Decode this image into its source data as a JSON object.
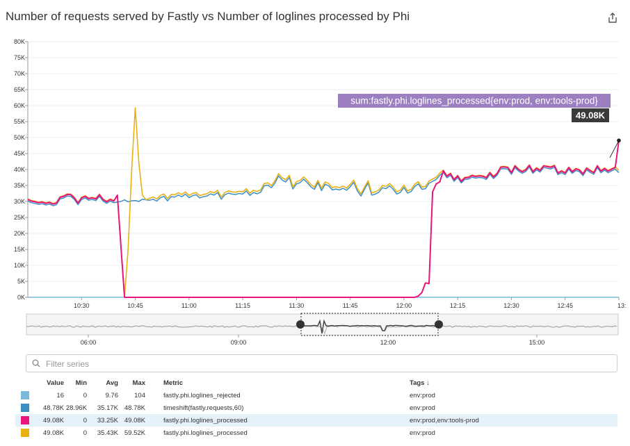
{
  "title": "Number of requests served by Fastly vs Number of loglines processed by Phi",
  "share_icon": "share-icon",
  "colors": {
    "rejected": "#7ab8dc",
    "requests": "#3b8fc4",
    "processed_tools": "#e8157d",
    "processed": "#e8b110"
  },
  "chart_data": {
    "type": "line",
    "title": "Number of requests served by Fastly vs Number of loglines processed by Phi",
    "ylim": [
      0,
      80000
    ],
    "yticks": [
      "0K",
      "5K",
      "10K",
      "15K",
      "20K",
      "25K",
      "30K",
      "35K",
      "40K",
      "45K",
      "50K",
      "55K",
      "60K",
      "65K",
      "70K",
      "75K",
      "80K"
    ],
    "xticks": [
      "10:30",
      "10:45",
      "11:00",
      "11:15",
      "11:30",
      "11:45",
      "12:00",
      "12:15",
      "12:30",
      "12:45",
      "13:"
    ],
    "x_start_min": 615,
    "x_end_min": 780,
    "grid": true,
    "tooltip": {
      "label": "sum:fastly.phi.loglines_processed{env:prod, env:tools-prod}",
      "value": "49.08K",
      "value_num": 49080
    },
    "series": [
      {
        "name": "timeshift(fastly.requests,60)",
        "key": "requests",
        "baseline": "base"
      },
      {
        "name": "fastly.phi.loglines_processed",
        "key": "processed",
        "baseline": "processed"
      },
      {
        "name": "fastly.phi.loglines_processed",
        "key": "processed_tools",
        "baseline": "tools"
      },
      {
        "name": "fastly.phi.loglines_rejected",
        "key": "rejected",
        "baseline": "zero"
      }
    ],
    "base_points": [
      [
        615,
        30500
      ],
      [
        616,
        30000
      ],
      [
        617,
        29800
      ],
      [
        618,
        29500
      ],
      [
        619,
        29700
      ],
      [
        620,
        29300
      ],
      [
        621,
        29600
      ],
      [
        622,
        29100
      ],
      [
        623,
        29400
      ],
      [
        624,
        31200
      ],
      [
        625,
        31500
      ],
      [
        626,
        32100
      ],
      [
        627,
        32000
      ],
      [
        628,
        31000
      ],
      [
        629,
        29400
      ],
      [
        630,
        31000
      ],
      [
        631,
        31500
      ],
      [
        632,
        30800
      ],
      [
        633,
        31000
      ],
      [
        634,
        30700
      ],
      [
        635,
        32000
      ],
      [
        636,
        30500
      ],
      [
        637,
        29800
      ],
      [
        638,
        30500
      ],
      [
        639,
        30000
      ],
      [
        640,
        30200
      ],
      [
        641,
        30400
      ],
      [
        642,
        30900
      ],
      [
        643,
        30300
      ],
      [
        644,
        30600
      ],
      [
        645,
        30700
      ],
      [
        646,
        30400
      ],
      [
        647,
        31100
      ],
      [
        648,
        30900
      ],
      [
        649,
        30800
      ],
      [
        650,
        31100
      ],
      [
        651,
        30500
      ],
      [
        652,
        31600
      ],
      [
        653,
        32000
      ],
      [
        654,
        30600
      ],
      [
        655,
        31900
      ],
      [
        656,
        31800
      ],
      [
        657,
        32400
      ],
      [
        658,
        31900
      ],
      [
        659,
        32700
      ],
      [
        660,
        31600
      ],
      [
        661,
        32200
      ],
      [
        662,
        32500
      ],
      [
        663,
        31500
      ],
      [
        664,
        31900
      ],
      [
        665,
        32100
      ],
      [
        666,
        32800
      ],
      [
        667,
        32400
      ],
      [
        668,
        33200
      ],
      [
        669,
        31100
      ],
      [
        670,
        32500
      ],
      [
        671,
        33000
      ],
      [
        672,
        32700
      ],
      [
        673,
        32600
      ],
      [
        674,
        32900
      ],
      [
        675,
        32700
      ],
      [
        676,
        33700
      ],
      [
        677,
        32300
      ],
      [
        678,
        33200
      ],
      [
        679,
        32800
      ],
      [
        680,
        33300
      ],
      [
        681,
        35300
      ],
      [
        682,
        35500
      ],
      [
        683,
        34700
      ],
      [
        684,
        36200
      ],
      [
        685,
        38400
      ],
      [
        686,
        37100
      ],
      [
        687,
        36500
      ],
      [
        688,
        37900
      ],
      [
        689,
        34300
      ],
      [
        690,
        35900
      ],
      [
        691,
        36300
      ],
      [
        692,
        37400
      ],
      [
        693,
        36300
      ],
      [
        694,
        35000
      ],
      [
        695,
        34200
      ],
      [
        696,
        36300
      ],
      [
        697,
        33800
      ],
      [
        698,
        35800
      ],
      [
        699,
        35300
      ],
      [
        700,
        34000
      ],
      [
        701,
        34300
      ],
      [
        702,
        34000
      ],
      [
        703,
        34500
      ],
      [
        704,
        33900
      ],
      [
        705,
        35000
      ],
      [
        706,
        36400
      ],
      [
        707,
        33700
      ],
      [
        708,
        32100
      ],
      [
        709,
        34200
      ],
      [
        710,
        36200
      ],
      [
        711,
        32400
      ],
      [
        712,
        32700
      ],
      [
        713,
        33300
      ],
      [
        714,
        34700
      ],
      [
        715,
        34400
      ],
      [
        716,
        35300
      ],
      [
        717,
        34200
      ],
      [
        718,
        32700
      ],
      [
        719,
        33300
      ],
      [
        720,
        34800
      ],
      [
        721,
        33000
      ],
      [
        722,
        33500
      ],
      [
        723,
        35100
      ],
      [
        724,
        35900
      ],
      [
        725,
        34200
      ],
      [
        726,
        34400
      ],
      [
        727,
        36100
      ],
      [
        728,
        36700
      ],
      [
        729,
        37300
      ],
      [
        730,
        38600
      ],
      [
        731,
        39500
      ],
      [
        732,
        37800
      ],
      [
        733,
        38600
      ],
      [
        734,
        36700
      ],
      [
        735,
        37900
      ],
      [
        736,
        36200
      ],
      [
        737,
        37300
      ],
      [
        738,
        37400
      ],
      [
        739,
        38000
      ],
      [
        740,
        37700
      ],
      [
        741,
        37900
      ],
      [
        742,
        37800
      ],
      [
        743,
        37300
      ],
      [
        744,
        38900
      ],
      [
        745,
        37600
      ],
      [
        746,
        38600
      ],
      [
        747,
        40600
      ],
      [
        748,
        40700
      ],
      [
        749,
        40500
      ],
      [
        750,
        38900
      ],
      [
        751,
        41000
      ],
      [
        752,
        39900
      ],
      [
        753,
        39200
      ],
      [
        754,
        39800
      ],
      [
        755,
        41200
      ],
      [
        756,
        39200
      ],
      [
        757,
        40300
      ],
      [
        758,
        39600
      ],
      [
        759,
        41000
      ],
      [
        760,
        40800
      ],
      [
        761,
        40600
      ],
      [
        762,
        41100
      ],
      [
        763,
        38800
      ],
      [
        764,
        39400
      ],
      [
        765,
        38800
      ],
      [
        766,
        40500
      ],
      [
        767,
        39200
      ],
      [
        768,
        40100
      ],
      [
        769,
        39700
      ],
      [
        770,
        38500
      ],
      [
        771,
        40300
      ],
      [
        772,
        39500
      ],
      [
        773,
        38900
      ],
      [
        774,
        41000
      ],
      [
        775,
        39400
      ],
      [
        776,
        40200
      ],
      [
        777,
        39400
      ],
      [
        778,
        40000
      ],
      [
        779,
        40500
      ],
      [
        780,
        39400
      ]
    ],
    "processed_overrides": [
      [
        640,
        31800
      ],
      [
        641,
        16000
      ],
      [
        642,
        0
      ],
      [
        643,
        15000
      ],
      [
        644,
        40000
      ],
      [
        645,
        59300
      ],
      [
        646,
        42000
      ],
      [
        647,
        32000
      ],
      [
        648,
        30500
      ],
      [
        649,
        31000
      ]
    ],
    "tools_overrides": [
      [
        640,
        32000
      ],
      [
        641,
        16000
      ],
      [
        642,
        0
      ],
      [
        643,
        0
      ],
      [
        720,
        0
      ],
      [
        721,
        0
      ],
      [
        722,
        0
      ],
      [
        723,
        0
      ],
      [
        724,
        400
      ],
      [
        725,
        1500
      ],
      [
        726,
        4500
      ],
      [
        727,
        4300
      ],
      [
        728,
        33000
      ],
      [
        729,
        35500
      ],
      [
        730,
        36100
      ],
      [
        780,
        49080
      ]
    ],
    "tools_zero_range": [
      642,
      723
    ]
  },
  "navigator": {
    "tick_labels": [
      "06:00",
      "09:00",
      "12:00",
      "15:00"
    ]
  },
  "filter": {
    "placeholder": "Filter series"
  },
  "legend": {
    "headers": {
      "value": "Value",
      "min": "Min",
      "avg": "Avg",
      "max": "Max",
      "metric": "Metric",
      "tags": "Tags ↓"
    },
    "rows": [
      {
        "value": "16",
        "min": "0",
        "avg": "9.76",
        "max": "104",
        "metric": "fastly.phi.loglines_rejected",
        "tags": "env:prod"
      },
      {
        "value": "48.78K",
        "min": "28.96K",
        "avg": "35.17K",
        "max": "48.78K",
        "metric": "timeshift(fastly.requests,60)",
        "tags": "env:prod"
      },
      {
        "value": "49.08K",
        "min": "0",
        "avg": "33.25K",
        "max": "49.08K",
        "metric": "fastly.phi.loglines_processed",
        "tags": "env:prod,env:tools-prod"
      },
      {
        "value": "49.08K",
        "min": "0",
        "avg": "35.43K",
        "max": "59.52K",
        "metric": "fastly.phi.loglines_processed",
        "tags": "env:prod"
      }
    ]
  }
}
